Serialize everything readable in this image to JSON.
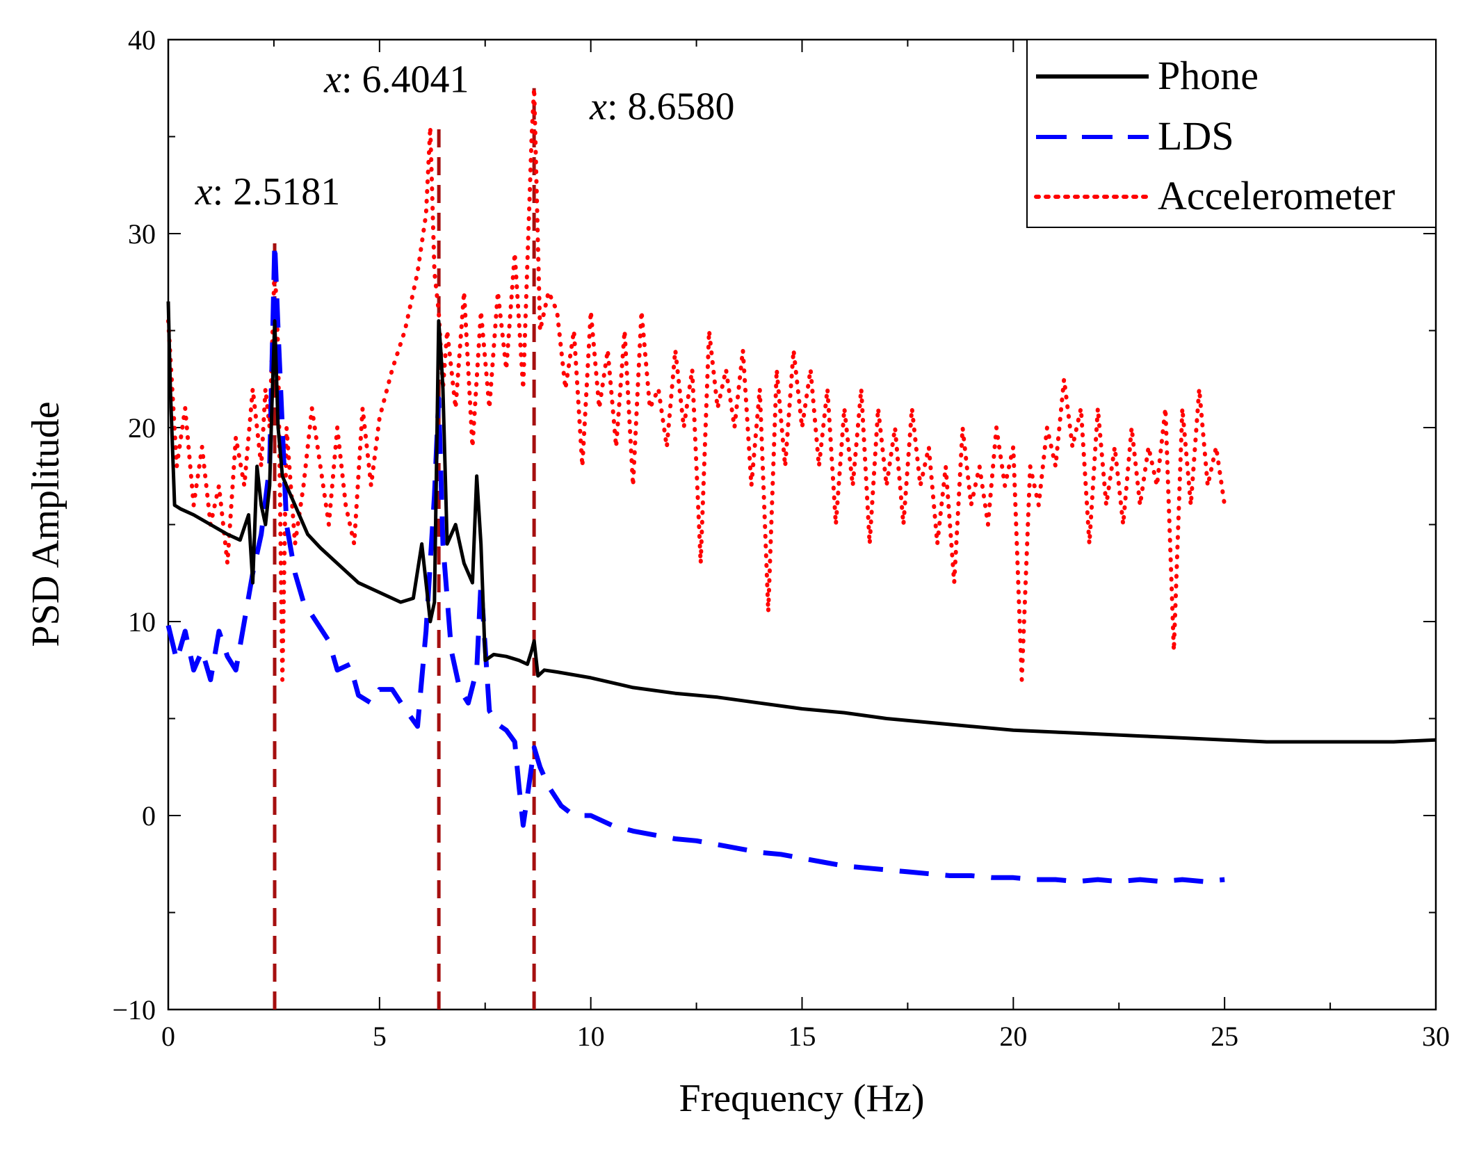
{
  "chart_data": {
    "type": "line",
    "title": "",
    "xlabel": "Frequency (Hz)",
    "ylabel": "PSD Amplitude",
    "xlim": [
      0,
      30
    ],
    "ylim": [
      -10,
      40
    ],
    "xticks": [
      0,
      5,
      10,
      15,
      20,
      25,
      30
    ],
    "xtick_labels": [
      "0",
      "5",
      "10",
      "15",
      "20",
      "25",
      "30"
    ],
    "yticks": [
      -10,
      0,
      10,
      20,
      30,
      40
    ],
    "ytick_labels": [
      "−10",
      "0",
      "10",
      "20",
      "30",
      "40"
    ],
    "grid": false,
    "legend_position": "top-right",
    "series": [
      {
        "name": "Phone",
        "style": "solid",
        "color": "#000000",
        "x": [
          0,
          0.05,
          0.15,
          0.3,
          0.6,
          1.0,
          1.4,
          1.7,
          1.9,
          2.0,
          2.1,
          2.2,
          2.3,
          2.4,
          2.45,
          2.52,
          2.6,
          2.7,
          2.8,
          3.0,
          3.3,
          3.6,
          4.0,
          4.5,
          5.0,
          5.5,
          5.8,
          6.0,
          6.1,
          6.2,
          6.3,
          6.4,
          6.45,
          6.5,
          6.6,
          6.8,
          7.0,
          7.2,
          7.3,
          7.4,
          7.5,
          7.7,
          8.0,
          8.3,
          8.5,
          8.6,
          8.66,
          8.75,
          8.9,
          9.2,
          10,
          11,
          12,
          13,
          14,
          15,
          16,
          17,
          18,
          19,
          20,
          21,
          22,
          23,
          24,
          25,
          26,
          27,
          28,
          29,
          30
        ],
        "y": [
          26.5,
          22,
          16,
          15.8,
          15.5,
          15,
          14.5,
          14.2,
          15.5,
          12,
          18,
          16,
          15,
          17,
          21,
          25.5,
          20,
          17.5,
          17,
          16,
          14.5,
          13.8,
          13,
          12,
          11.5,
          11,
          11.2,
          14,
          12,
          10,
          11,
          25.5,
          24,
          22,
          14,
          15,
          13,
          12,
          17.5,
          14,
          8,
          8.3,
          8.2,
          8,
          7.8,
          8.5,
          9,
          7.2,
          7.5,
          7.4,
          7.1,
          6.6,
          6.3,
          6.1,
          5.8,
          5.5,
          5.3,
          5.0,
          4.8,
          4.6,
          4.4,
          4.3,
          4.2,
          4.1,
          4.0,
          3.9,
          3.8,
          3.8,
          3.8,
          3.8,
          3.9
        ]
      },
      {
        "name": "LDS",
        "style": "dashed",
        "color": "#0000ff",
        "x": [
          0,
          0.2,
          0.4,
          0.6,
          0.8,
          1.0,
          1.2,
          1.4,
          1.6,
          1.8,
          2.0,
          2.2,
          2.4,
          2.52,
          2.6,
          2.8,
          3.0,
          3.2,
          3.5,
          3.8,
          4.0,
          4.3,
          4.5,
          4.8,
          5.0,
          5.3,
          5.6,
          5.9,
          6.1,
          6.3,
          6.4,
          6.5,
          6.7,
          6.9,
          7.1,
          7.3,
          7.4,
          7.6,
          7.8,
          8.0,
          8.2,
          8.3,
          8.4,
          8.5,
          8.66,
          8.8,
          9.0,
          9.3,
          9.6,
          10,
          10.5,
          11,
          11.5,
          12,
          12.5,
          13,
          13.5,
          14,
          14.5,
          15,
          15.5,
          16,
          16.5,
          17,
          17.5,
          18,
          18.5,
          19,
          19.5,
          20,
          20.5,
          21,
          21.5,
          22,
          22.5,
          23,
          23.5,
          24,
          24.5,
          25
        ],
        "y": [
          9.8,
          8,
          9.5,
          7.5,
          8.5,
          7,
          9.5,
          8.2,
          7.5,
          10,
          12.5,
          14.5,
          18,
          29.5,
          25,
          15,
          12.5,
          11,
          10,
          9,
          7.5,
          7.8,
          6.2,
          5.8,
          6.5,
          6.5,
          5.5,
          4.6,
          9.5,
          16.5,
          21.5,
          14,
          8.5,
          6.5,
          5.8,
          7.5,
          12,
          5.4,
          4.7,
          4.4,
          3.8,
          1.5,
          -0.5,
          1.0,
          3.5,
          2.5,
          1.5,
          0.5,
          0,
          0,
          -0.5,
          -0.8,
          -1.0,
          -1.2,
          -1.3,
          -1.5,
          -1.7,
          -1.9,
          -2.0,
          -2.2,
          -2.4,
          -2.6,
          -2.7,
          -2.8,
          -2.9,
          -3.0,
          -3.1,
          -3.1,
          -3.2,
          -3.2,
          -3.3,
          -3.3,
          -3.4,
          -3.3,
          -3.4,
          -3.3,
          -3.4,
          -3.3,
          -3.4,
          -3.3
        ]
      },
      {
        "name": "Accelerometer",
        "style": "dotted",
        "color": "#ff0000",
        "x": [
          0,
          0.2,
          0.4,
          0.6,
          0.8,
          1.0,
          1.2,
          1.4,
          1.6,
          1.8,
          2.0,
          2.2,
          2.3,
          2.4,
          2.52,
          2.6,
          2.7,
          2.8,
          3.0,
          3.2,
          3.4,
          3.6,
          3.8,
          4.0,
          4.2,
          4.4,
          4.6,
          4.8,
          5.0,
          5.3,
          5.6,
          5.9,
          6.1,
          6.2,
          6.3,
          6.4,
          6.5,
          6.6,
          6.8,
          7.0,
          7.2,
          7.4,
          7.6,
          7.8,
          8.0,
          8.2,
          8.4,
          8.6,
          8.66,
          8.8,
          9.0,
          9.2,
          9.4,
          9.6,
          9.8,
          10.0,
          10.2,
          10.4,
          10.6,
          10.8,
          11.0,
          11.2,
          11.4,
          11.6,
          11.8,
          12.0,
          12.2,
          12.4,
          12.6,
          12.8,
          13.0,
          13.2,
          13.4,
          13.6,
          13.8,
          14.0,
          14.2,
          14.4,
          14.6,
          14.8,
          15.0,
          15.2,
          15.4,
          15.6,
          15.8,
          16.0,
          16.2,
          16.4,
          16.6,
          16.8,
          17.0,
          17.2,
          17.4,
          17.6,
          17.8,
          18.0,
          18.2,
          18.4,
          18.6,
          18.8,
          19.0,
          19.2,
          19.4,
          19.6,
          19.8,
          20.0,
          20.2,
          20.4,
          20.6,
          20.8,
          21.0,
          21.2,
          21.4,
          21.6,
          21.8,
          22.0,
          22.2,
          22.4,
          22.6,
          22.8,
          23.0,
          23.2,
          23.4,
          23.6,
          23.8,
          24.0,
          24.2,
          24.4,
          24.6,
          24.8,
          25.0
        ],
        "y": [
          25.5,
          18,
          21,
          16,
          19,
          15,
          17,
          13,
          19.5,
          17,
          22,
          18,
          22,
          20,
          28.5,
          24,
          7,
          20,
          14,
          17,
          21,
          18,
          15,
          20,
          16,
          14,
          21,
          17,
          20.5,
          23,
          25,
          28,
          31,
          35.5,
          28,
          26,
          22,
          25,
          21,
          27,
          19,
          26,
          21,
          27,
          23,
          29,
          22,
          35,
          37.5,
          25,
          27,
          26,
          22,
          25,
          18,
          26,
          21,
          24,
          19,
          25,
          17,
          26,
          21,
          22,
          19,
          24,
          20,
          23,
          13,
          25,
          21,
          23,
          20,
          24,
          17,
          22,
          10.5,
          23,
          18,
          24,
          20,
          23,
          18,
          22,
          15,
          21,
          17,
          22,
          14,
          21,
          17,
          20,
          15,
          21,
          17,
          19,
          14,
          18,
          12,
          20,
          16,
          18,
          15,
          20,
          17,
          19,
          7,
          18,
          16,
          20,
          18,
          22.5,
          19,
          21,
          14,
          21,
          16,
          19,
          15,
          20,
          16,
          19,
          17,
          21,
          8.5,
          21,
          16,
          22,
          17,
          19,
          16
        ]
      }
    ],
    "annotations": [
      {
        "x": 2.5181,
        "y_label_at": 31.5,
        "prefix": "x",
        "text": ": 2.5181"
      },
      {
        "x": 6.4041,
        "y_label_at": 37.3,
        "prefix": "x",
        "text": ": 6.4041"
      },
      {
        "x": 8.658,
        "y_label_at": 35.9,
        "prefix": "x",
        "text": ": 8.6580"
      }
    ],
    "vlines": {
      "color": "#a50f0f",
      "style": "dashed",
      "x": [
        2.5181,
        6.4041,
        8.658
      ],
      "y_top": [
        29.5,
        35.5,
        37.5
      ]
    }
  }
}
